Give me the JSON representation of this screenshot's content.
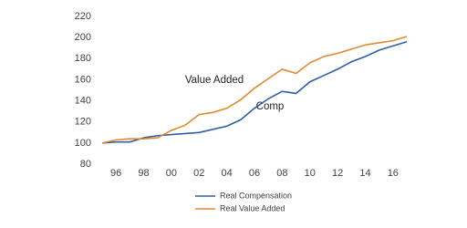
{
  "chart_data": {
    "type": "line",
    "x": [
      1995,
      1996,
      1997,
      1998,
      1999,
      2000,
      2001,
      2002,
      2003,
      2004,
      2005,
      2006,
      2007,
      2008,
      2009,
      2010,
      2011,
      2012,
      2013,
      2014,
      2015,
      2016,
      2017
    ],
    "xlim": [
      1995,
      2017
    ],
    "xticks": [
      {
        "value": 1996,
        "label": "96"
      },
      {
        "value": 1998,
        "label": "98"
      },
      {
        "value": 2000,
        "label": "00"
      },
      {
        "value": 2002,
        "label": "02"
      },
      {
        "value": 2004,
        "label": "04"
      },
      {
        "value": 2006,
        "label": "06"
      },
      {
        "value": 2008,
        "label": "08"
      },
      {
        "value": 2010,
        "label": "10"
      },
      {
        "value": 2012,
        "label": "12"
      },
      {
        "value": 2014,
        "label": "14"
      },
      {
        "value": 2016,
        "label": "16"
      }
    ],
    "ylim": [
      80,
      220
    ],
    "yticks": [
      80,
      100,
      120,
      140,
      160,
      180,
      200,
      220
    ],
    "grid": false,
    "legend": "bottom",
    "annotations": [
      "Value Added",
      "Comp"
    ],
    "series": [
      {
        "name": "Real Compensation",
        "color": "#2f5ea8",
        "values": [
          100,
          101,
          101,
          105,
          107,
          108,
          109,
          110,
          113,
          116,
          122,
          133,
          142,
          149,
          147,
          158,
          164,
          170,
          177,
          182,
          188,
          192,
          196
        ]
      },
      {
        "name": "Real Value Added",
        "color": "#e08a2e",
        "values": [
          100,
          103,
          104,
          104,
          105,
          112,
          117,
          127,
          129,
          133,
          141,
          152,
          161,
          170,
          166,
          176,
          182,
          185,
          189,
          193,
          195,
          197,
          201
        ]
      }
    ]
  }
}
